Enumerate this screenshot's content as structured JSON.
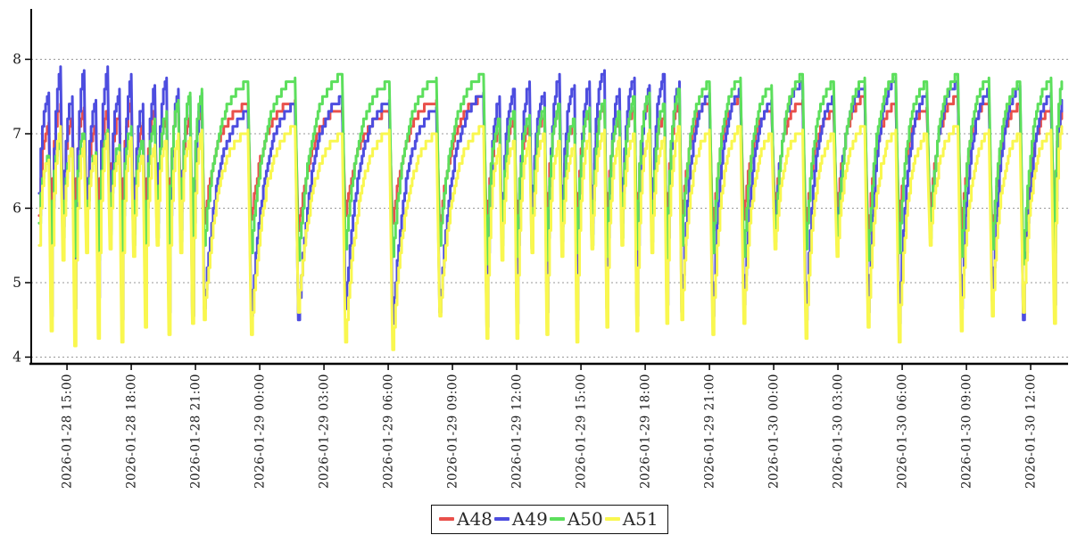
{
  "chart_data": {
    "type": "line",
    "title": "",
    "xlabel": "",
    "ylabel": "",
    "grid": "horizontal-dashed",
    "grid_color": "#999999",
    "axis_color": "#000000",
    "legend_position": "bottom-center",
    "y_axis": {
      "min": 4,
      "max": 8.7,
      "ticks": [
        4,
        5,
        6,
        7,
        8
      ]
    },
    "x_axis": {
      "unit": "hours since 2026-01-28 00:00",
      "range": [
        13.33,
        61.75
      ],
      "tick_hours": [
        15,
        18,
        21,
        24,
        27,
        30,
        33,
        36,
        39,
        42,
        45,
        48,
        51,
        54,
        57,
        60
      ],
      "tick_labels": [
        "2026-01-28 15:00",
        "2026-01-28 18:00",
        "2026-01-28 21:00",
        "2026-01-29 00:00",
        "2026-01-29 03:00",
        "2026-01-29 06:00",
        "2026-01-29 09:00",
        "2026-01-29 12:00",
        "2026-01-29 15:00",
        "2026-01-29 18:00",
        "2026-01-29 21:00",
        "2026-01-30 00:00",
        "2026-01-30 03:00",
        "2026-01-30 06:00",
        "2026-01-30 09:00",
        "2026-01-30 12:00"
      ]
    },
    "cycles": {
      "comment": "sawtooth cycles: t = [dip_time, peak_time] per cycle; each series has value at dip (low) and at peak (high)",
      "t": [
        [
          13.7,
          14.15
        ],
        [
          14.25,
          14.7
        ],
        [
          14.8,
          15.25
        ],
        [
          15.35,
          15.8
        ],
        [
          15.9,
          16.35
        ],
        [
          16.45,
          16.9
        ],
        [
          17.0,
          17.45
        ],
        [
          17.55,
          18.0
        ],
        [
          18.1,
          18.55
        ],
        [
          18.65,
          19.1
        ],
        [
          19.2,
          19.65
        ],
        [
          19.75,
          20.2
        ],
        [
          20.3,
          20.75
        ],
        [
          20.85,
          21.3
        ],
        [
          21.4,
          23.45
        ],
        [
          23.6,
          25.65
        ],
        [
          25.8,
          27.85
        ],
        [
          28.0,
          30.05
        ],
        [
          30.2,
          32.25
        ],
        [
          32.4,
          34.45
        ],
        [
          34.6,
          35.2
        ],
        [
          35.3,
          35.9
        ],
        [
          36.0,
          36.6
        ],
        [
          36.7,
          37.3
        ],
        [
          37.4,
          38.0
        ],
        [
          38.1,
          38.7
        ],
        [
          38.8,
          39.4
        ],
        [
          39.5,
          40.1
        ],
        [
          40.2,
          40.8
        ],
        [
          40.9,
          41.5
        ],
        [
          41.6,
          42.2
        ],
        [
          42.3,
          42.9
        ],
        [
          43.0,
          43.6
        ],
        [
          43.7,
          45.0
        ],
        [
          45.15,
          46.45
        ],
        [
          46.6,
          47.9
        ],
        [
          48.05,
          49.35
        ],
        [
          49.5,
          50.8
        ],
        [
          50.95,
          52.25
        ],
        [
          52.4,
          53.7
        ],
        [
          53.85,
          55.15
        ],
        [
          55.3,
          56.6
        ],
        [
          56.75,
          58.05
        ],
        [
          58.2,
          59.5
        ],
        [
          59.65,
          60.95
        ],
        [
          61.1,
          61.45
        ]
      ]
    },
    "series": [
      {
        "name": "A48",
        "color": "#e9504b",
        "low": [
          5.9,
          5.7,
          6.0,
          5.6,
          5.95,
          5.75,
          6.05,
          5.65,
          5.9,
          5.7,
          6.0,
          5.6,
          5.95,
          5.75,
          5.8,
          5.85,
          5.7,
          5.9,
          5.8,
          5.75,
          5.6,
          5.75,
          5.6,
          5.85,
          5.7,
          5.9,
          5.65,
          5.8,
          5.75,
          5.95,
          5.7,
          5.85,
          5.6,
          5.8,
          5.7,
          5.85,
          6.0,
          5.75,
          5.9,
          5.65,
          5.8,
          5.95,
          5.7,
          5.6,
          5.3,
          5.75
        ],
        "high": [
          7.15,
          7.4,
          7.2,
          7.35,
          7.1,
          7.3,
          7.25,
          7.45,
          7.15,
          7.3,
          7.2,
          7.4,
          7.25,
          7.35,
          7.4,
          7.45,
          7.35,
          7.3,
          7.45,
          7.5,
          7.05,
          7.2,
          7.1,
          7.25,
          7.35,
          7.15,
          7.3,
          7.4,
          7.2,
          7.35,
          7.45,
          7.25,
          7.4,
          7.45,
          7.5,
          7.35,
          7.45,
          7.3,
          7.5,
          7.4,
          7.35,
          7.5,
          7.45,
          7.4,
          7.35,
          7.3
        ]
      },
      {
        "name": "A49",
        "color": "#4d4ddf",
        "low": [
          6.2,
          4.55,
          5.75,
          4.65,
          5.6,
          4.8,
          5.7,
          4.5,
          5.65,
          4.7,
          5.8,
          4.6,
          5.7,
          4.55,
          4.65,
          4.55,
          4.5,
          4.65,
          4.45,
          4.6,
          4.4,
          5.6,
          4.45,
          5.7,
          4.6,
          5.75,
          4.5,
          5.65,
          4.65,
          5.8,
          4.55,
          5.7,
          4.7,
          4.6,
          4.55,
          4.7,
          5.75,
          4.5,
          5.65,
          4.6,
          4.45,
          5.7,
          4.65,
          4.75,
          4.5,
          4.7
        ],
        "high": [
          7.55,
          7.9,
          7.5,
          7.85,
          7.45,
          7.9,
          7.6,
          7.8,
          7.4,
          7.65,
          7.75,
          7.6,
          7.5,
          7.55,
          7.3,
          7.4,
          7.5,
          7.45,
          7.35,
          7.55,
          7.5,
          7.6,
          7.7,
          7.55,
          7.8,
          7.65,
          7.7,
          7.85,
          7.6,
          7.75,
          7.65,
          7.8,
          7.7,
          7.55,
          7.6,
          7.45,
          7.7,
          7.5,
          7.65,
          7.75,
          7.55,
          7.7,
          7.6,
          7.65,
          7.55,
          7.45
        ]
      },
      {
        "name": "A50",
        "color": "#5cdf5c",
        "low": [
          5.8,
          5.45,
          5.6,
          5.35,
          5.55,
          5.3,
          5.65,
          5.4,
          5.5,
          5.3,
          5.6,
          5.35,
          5.55,
          5.45,
          5.5,
          5.4,
          5.3,
          5.45,
          5.35,
          5.5,
          5.25,
          5.5,
          5.35,
          5.45,
          5.3,
          5.55,
          5.4,
          5.5,
          5.35,
          5.6,
          5.45,
          5.55,
          5.3,
          5.5,
          5.4,
          5.35,
          5.55,
          5.45,
          5.5,
          5.3,
          5.4,
          5.6,
          5.35,
          5.45,
          5.25,
          5.4
        ],
        "high": [
          6.7,
          6.95,
          6.8,
          7.0,
          6.75,
          7.05,
          6.85,
          7.1,
          6.9,
          7.2,
          7.3,
          7.45,
          7.55,
          7.6,
          7.7,
          7.75,
          7.8,
          7.7,
          7.75,
          7.8,
          7.2,
          7.3,
          7.25,
          7.35,
          7.4,
          7.2,
          7.35,
          7.45,
          7.3,
          7.5,
          7.55,
          7.4,
          7.6,
          7.7,
          7.75,
          7.65,
          7.8,
          7.7,
          7.75,
          7.8,
          7.7,
          7.8,
          7.75,
          7.7,
          7.75,
          7.7
        ]
      },
      {
        "name": "A51",
        "color": "#f9f74f",
        "low": [
          5.5,
          4.35,
          5.3,
          4.15,
          5.4,
          4.25,
          5.45,
          4.2,
          5.35,
          4.4,
          5.5,
          4.3,
          5.4,
          4.45,
          4.5,
          4.3,
          4.6,
          4.2,
          4.1,
          4.55,
          4.25,
          5.3,
          4.25,
          5.4,
          4.3,
          5.35,
          4.2,
          5.45,
          4.4,
          5.5,
          4.35,
          5.4,
          4.45,
          4.5,
          4.3,
          4.45,
          5.45,
          4.25,
          5.35,
          4.4,
          4.2,
          5.5,
          4.35,
          4.55,
          4.6,
          4.45
        ],
        "high": [
          6.65,
          7.1,
          6.8,
          6.9,
          6.7,
          7.0,
          6.75,
          6.95,
          6.7,
          6.85,
          6.9,
          7.0,
          6.95,
          7.05,
          7.05,
          7.1,
          7.0,
          7.05,
          7.0,
          7.1,
          6.85,
          6.9,
          6.95,
          7.0,
          6.9,
          6.85,
          7.0,
          7.05,
          6.95,
          7.0,
          7.05,
          6.95,
          7.1,
          7.05,
          7.1,
          7.0,
          7.05,
          7.0,
          7.1,
          7.05,
          7.0,
          7.1,
          7.05,
          7.0,
          7.05,
          7.1
        ]
      }
    ]
  },
  "legend": {
    "items": [
      {
        "label": "A48",
        "color": "#e9504b"
      },
      {
        "label": "A49",
        "color": "#4d4ddf"
      },
      {
        "label": "A50",
        "color": "#5cdf5c"
      },
      {
        "label": "A51",
        "color": "#f9f74f"
      }
    ]
  }
}
